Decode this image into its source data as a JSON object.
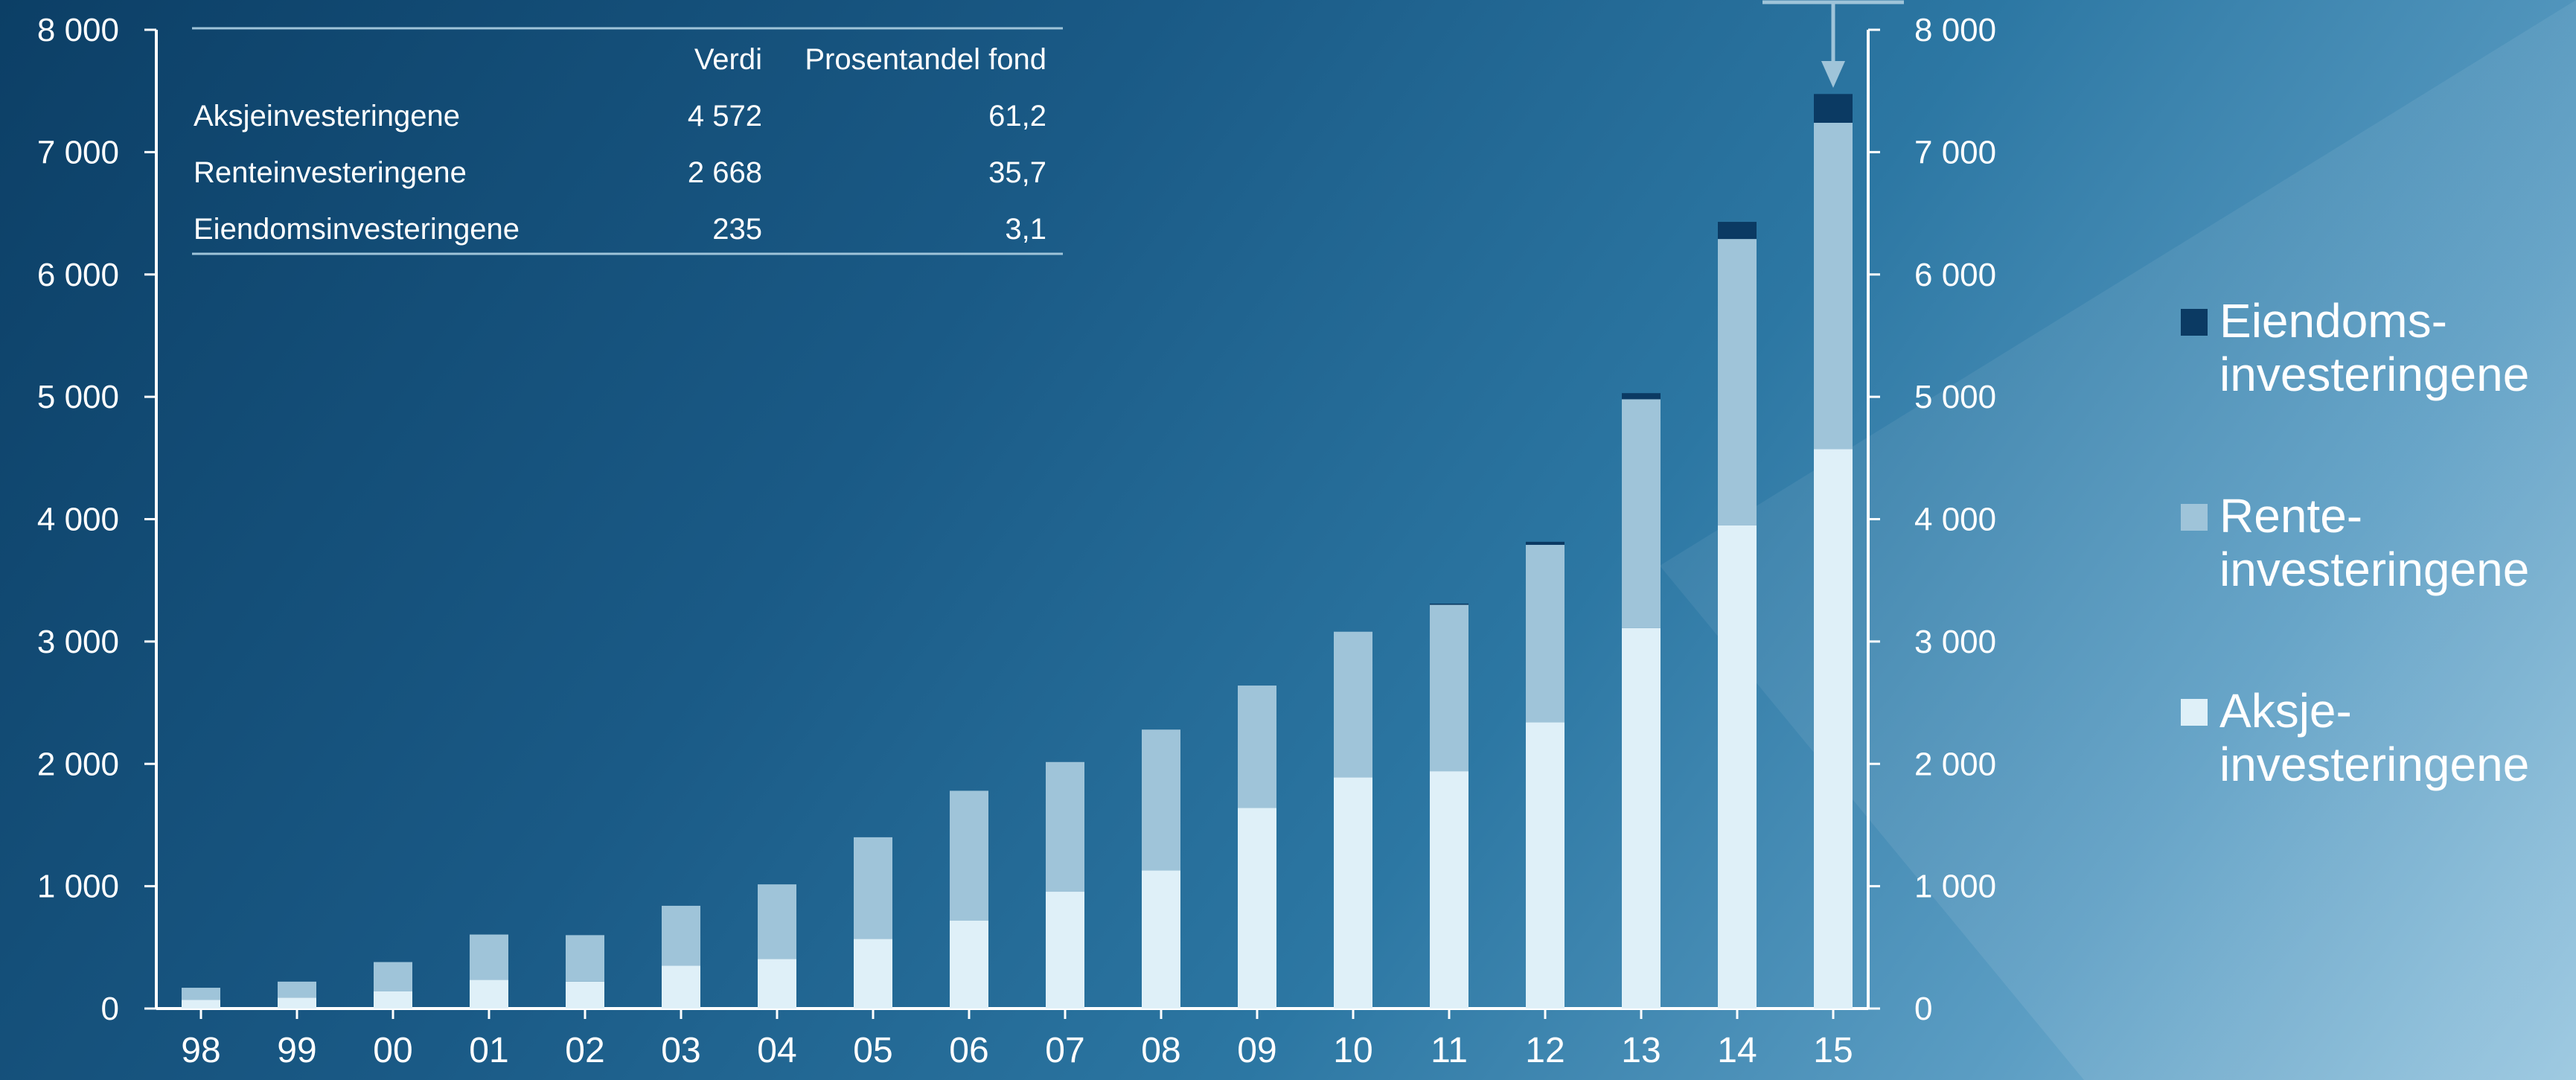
{
  "colors": {
    "eiendom": "#0b3a63",
    "rente": "#9fc4d9",
    "aksje": "#dff0f8",
    "axis": "#ffffff",
    "table_rule": "#9fc4d9",
    "arrow": "#9fc4d9"
  },
  "legend": {
    "items": [
      {
        "key": "eiendom",
        "line1": "Eiendoms-",
        "line2": "investeringene",
        "icon": "square-swatch"
      },
      {
        "key": "rente",
        "line1": "Rente-",
        "line2": "investeringene",
        "icon": "square-swatch"
      },
      {
        "key": "aksje",
        "line1": "Aksje-",
        "line2": "investeringene",
        "icon": "square-swatch"
      }
    ]
  },
  "table": {
    "headers": [
      "",
      "Verdi",
      "Prosentandel fond"
    ],
    "rows": [
      [
        "Aksjeinvesteringene",
        "4 572",
        "61,2"
      ],
      [
        "Renteinvesteringene",
        "2 668",
        "35,7"
      ],
      [
        "Eiendomsinvesteringene",
        "235",
        "3,1"
      ]
    ]
  },
  "chart_data": {
    "type": "bar",
    "stacked": true,
    "categories": [
      "98",
      "99",
      "00",
      "01",
      "02",
      "03",
      "04",
      "05",
      "06",
      "07",
      "08",
      "09",
      "10",
      "11",
      "12",
      "13",
      "14",
      "15"
    ],
    "series": [
      {
        "name": "Aksjeinvesteringene",
        "values": [
          70,
          90,
          140,
          235,
          220,
          350,
          405,
          570,
          720,
          955,
          1130,
          1640,
          1890,
          1940,
          2340,
          3110,
          3950,
          4572
        ]
      },
      {
        "name": "Renteinvesteringene",
        "values": [
          100,
          130,
          240,
          370,
          380,
          490,
          610,
          830,
          1060,
          1060,
          1150,
          1000,
          1190,
          1360,
          1450,
          1870,
          2340,
          2668
        ]
      },
      {
        "name": "Eiendomsinvesteringene",
        "values": [
          0,
          0,
          0,
          0,
          0,
          0,
          0,
          0,
          0,
          0,
          0,
          0,
          0,
          10,
          25,
          50,
          140,
          235
        ]
      }
    ],
    "y_ticks": [
      "0",
      "1 000",
      "2 000",
      "3 000",
      "4 000",
      "5 000",
      "6 000",
      "7 000",
      "8 000"
    ],
    "ylim": [
      0,
      8000
    ],
    "grid": false,
    "legend_position": "right",
    "annotation": "arrow pointing to 15"
  }
}
